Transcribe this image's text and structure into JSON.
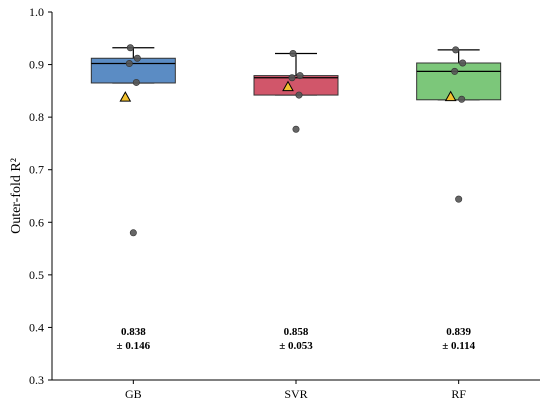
{
  "chart_data": {
    "type": "box",
    "ylabel": "Outer-fold R²",
    "ylim": [
      0.3,
      1.0
    ],
    "y_ticks": [
      "0.3",
      "0.4",
      "0.5",
      "0.6",
      "0.7",
      "0.8",
      "0.9",
      "1.0"
    ],
    "categories": [
      "GB",
      "SVR",
      "RF"
    ],
    "grid": false,
    "series": [
      {
        "category": "GB",
        "color": "#5b8cc4",
        "whisker_low": 0.865,
        "q1": 0.865,
        "median": 0.902,
        "q3": 0.912,
        "whisker_high": 0.932,
        "mean": 0.838,
        "points": [
          0.932,
          0.912,
          0.902,
          0.866,
          0.58
        ],
        "outliers": [
          0.58
        ],
        "stat_mean": "0.838",
        "stat_sd": "± 0.146"
      },
      {
        "category": "SVR",
        "color": "#d1566a",
        "whisker_low": 0.842,
        "q1": 0.842,
        "median": 0.875,
        "q3": 0.879,
        "whisker_high": 0.921,
        "mean": 0.858,
        "points": [
          0.921,
          0.879,
          0.875,
          0.842,
          0.777
        ],
        "outliers": [
          0.777
        ],
        "stat_mean": "0.858",
        "stat_sd": "± 0.053"
      },
      {
        "category": "RF",
        "color": "#7cc77a",
        "whisker_low": 0.833,
        "q1": 0.833,
        "median": 0.887,
        "q3": 0.903,
        "whisker_high": 0.928,
        "mean": 0.839,
        "points": [
          0.928,
          0.903,
          0.887,
          0.834,
          0.644
        ],
        "outliers": [
          0.644
        ],
        "stat_mean": "0.839",
        "stat_sd": "± 0.114"
      }
    ],
    "mean_marker_color": "#f2c12e",
    "point_color": "#555555"
  }
}
